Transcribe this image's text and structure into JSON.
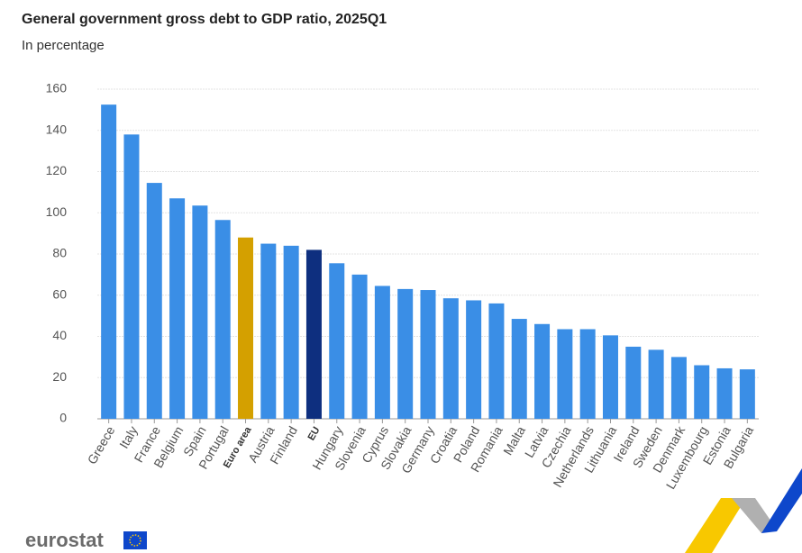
{
  "chart_data": {
    "type": "bar",
    "title": "General government gross debt to GDP ratio, 2025Q1",
    "subtitle": "In percentage",
    "categories": [
      "Greece",
      "Italy",
      "France",
      "Belgium",
      "Spain",
      "Portugal",
      "Euro area",
      "Austria",
      "Finland",
      "EU",
      "Hungary",
      "Slovenia",
      "Cyprus",
      "Slovakia",
      "Germany",
      "Croatia",
      "Poland",
      "Romania",
      "Malta",
      "Latvia",
      "Czechia",
      "Netherlands",
      "Lithuania",
      "Ireland",
      "Sweden",
      "Denmark",
      "Luxembourg",
      "Estonia",
      "Bulgaria"
    ],
    "values": [
      152.5,
      138,
      114.5,
      107,
      103.5,
      96.5,
      88,
      85,
      84,
      82,
      75.5,
      70,
      64.5,
      63,
      62.5,
      58.5,
      57.5,
      56,
      48.5,
      46,
      43.5,
      43.5,
      40.5,
      35,
      33.5,
      30,
      26,
      24.5,
      24
    ],
    "color": "#3a8ee6",
    "colors": [
      "#3a8ee6",
      "#3a8ee6",
      "#3a8ee6",
      "#3a8ee6",
      "#3a8ee6",
      "#3a8ee6",
      "#d4a000",
      "#3a8ee6",
      "#3a8ee6",
      "#0e2f7f",
      "#3a8ee6",
      "#3a8ee6",
      "#3a8ee6",
      "#3a8ee6",
      "#3a8ee6",
      "#3a8ee6",
      "#3a8ee6",
      "#3a8ee6",
      "#3a8ee6",
      "#3a8ee6",
      "#3a8ee6",
      "#3a8ee6",
      "#3a8ee6",
      "#3a8ee6",
      "#3a8ee6",
      "#3a8ee6",
      "#3a8ee6",
      "#3a8ee6",
      "#3a8ee6"
    ],
    "ylim": [
      0,
      160
    ],
    "yticks": [
      0,
      20,
      40,
      60,
      80,
      100,
      120,
      140,
      160
    ],
    "grid": true
  },
  "logo": "eurostat"
}
